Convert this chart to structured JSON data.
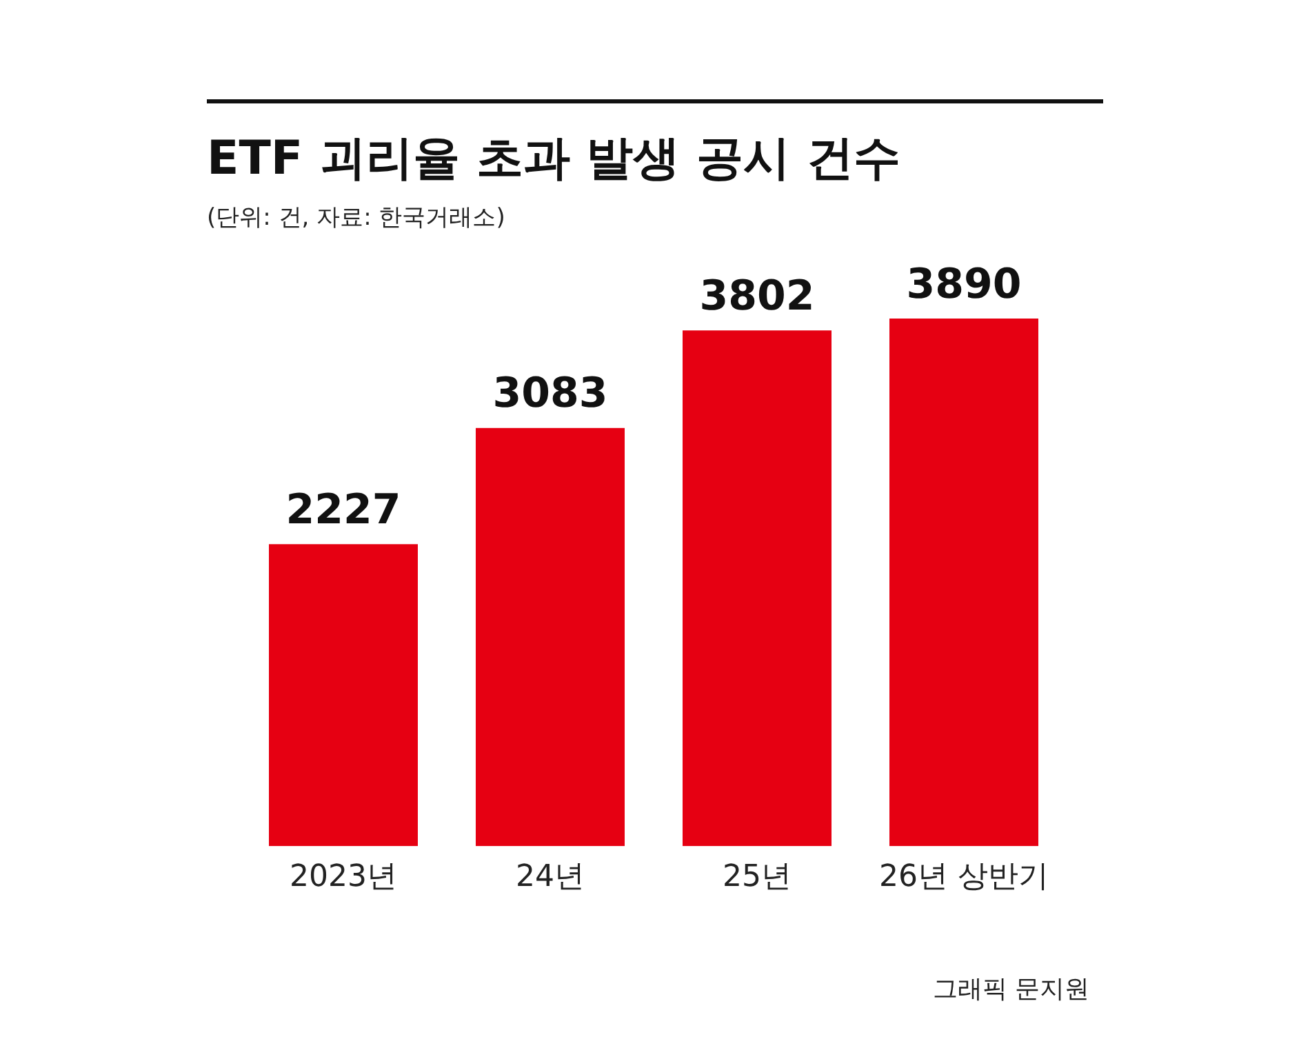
{
  "chart_data": {
    "type": "bar",
    "title": "ETF 괴리율 초과 발생 공시 건수",
    "subtitle": "(단위: 건, 자료: 한국거래소)",
    "categories": [
      "2023년",
      "24년",
      "25년",
      "26년 상반기"
    ],
    "values": [
      2227,
      3083,
      3802,
      3890
    ],
    "color": "#e60012",
    "data_labels": true,
    "grid": false,
    "legend": false,
    "tick_labels": "x",
    "annotations": [
      "그래픽 문지원"
    ]
  }
}
